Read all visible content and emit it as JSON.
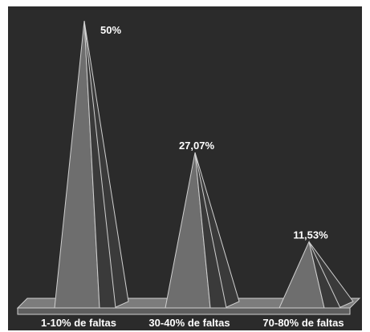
{
  "chart_data": {
    "type": "bar",
    "bar_shape": "pyramid",
    "categories": [
      "1-10% de faltas",
      "30-40% de faltas",
      "70-80% de faltas"
    ],
    "values": [
      50,
      27.07,
      11.53
    ],
    "data_labels": [
      "50%",
      "27,07%",
      "11,53%"
    ],
    "title": "",
    "xlabel": "",
    "ylabel": "",
    "ylim": [
      0,
      50
    ],
    "grid": false,
    "legend": "none"
  },
  "colors": {
    "background": "#2b2b2b",
    "frame": "#ffffff",
    "floor_top": "#7c7c7c",
    "floor_front": "#5e5e5e",
    "pyramid_front": "#6e6e6e",
    "pyramid_side": "#3a3a3a",
    "edge": "#d0d0d0",
    "text": "#ffffff"
  }
}
